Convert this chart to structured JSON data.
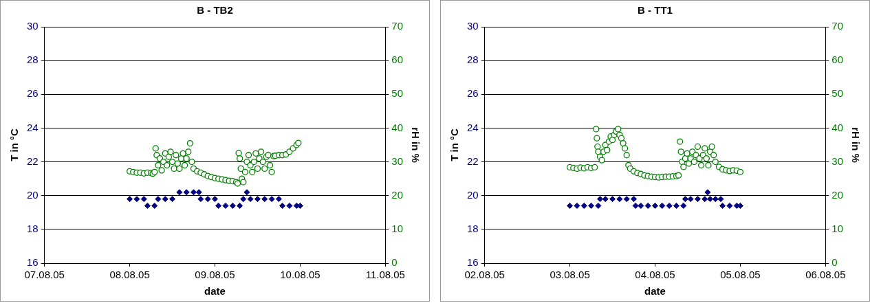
{
  "chart_data": [
    {
      "type": "scatter",
      "title": "B - TB2",
      "xlabel": "date",
      "ylabel": "T in °C",
      "y2label": "rH in %",
      "xlim": [
        "--08-07",
        "--08-11"
      ],
      "xticks": [
        {
          "value": "--08-07",
          "label": "07.08.05"
        },
        {
          "value": "--08-08",
          "label": "08.08.05"
        },
        {
          "value": "--08-09",
          "label": "09.08.05"
        },
        {
          "value": "--08-10",
          "label": "10.08.05"
        },
        {
          "value": "--08-11",
          "label": "11.08.05"
        }
      ],
      "ylim": [
        16,
        30
      ],
      "yticks": [
        16,
        18,
        20,
        22,
        24,
        26,
        28,
        30
      ],
      "y2lim": [
        0,
        70
      ],
      "y2ticks": [
        0,
        10,
        20,
        30,
        40,
        50,
        60,
        70
      ],
      "grid": "y",
      "legend": false,
      "series": [
        {
          "color": "#000080",
          "marker": "diamond",
          "x": [
            "--08-08T00:00",
            "--08-08T02:00",
            "--08-08T04:00",
            "--08-08T05:00",
            "--08-08T07:00",
            "--08-08T08:00",
            "--08-08T10:00",
            "--08-08T12:00",
            "--08-08T14:00",
            "--08-08T16:00",
            "--08-08T18:00",
            "--08-08T19:30",
            "--08-08T20:00",
            "--08-08T22:00",
            "--08-09T00:00",
            "--08-09T01:00",
            "--08-09T03:00",
            "--08-09T05:00",
            "--08-09T07:00",
            "--08-09T08:00",
            "--08-09T09:00",
            "--08-09T10:00",
            "--08-09T12:00",
            "--08-09T14:00",
            "--08-09T16:00",
            "--08-09T18:00",
            "--08-09T19:00",
            "--08-09T21:00",
            "--08-09T23:00",
            "--08-10T00:00"
          ],
          "values": [
            19.8,
            19.8,
            19.8,
            19.4,
            19.4,
            19.8,
            19.8,
            19.8,
            20.2,
            20.2,
            20.2,
            20.2,
            19.8,
            19.8,
            19.8,
            19.4,
            19.4,
            19.4,
            19.4,
            19.8,
            20.2,
            19.8,
            19.8,
            19.8,
            19.8,
            19.8,
            19.4,
            19.4,
            19.4,
            19.4
          ]
        },
        {
          "color": "#008000",
          "marker": "circle",
          "axis": "y2",
          "x": [
            "--08-08T00:00",
            "--08-08T01:00",
            "--08-08T02:00",
            "--08-08T03:00",
            "--08-08T04:00",
            "--08-08T05:00",
            "--08-08T06:00",
            "--08-08T06:30",
            "--08-08T07:00",
            "--08-08T07:18",
            "--08-08T07:36",
            "--08-08T08:00",
            "--08-08T08:30",
            "--08-08T09:00",
            "--08-08T09:30",
            "--08-08T10:00",
            "--08-08T10:30",
            "--08-08T11:00",
            "--08-08T11:30",
            "--08-08T12:00",
            "--08-08T12:30",
            "--08-08T13:00",
            "--08-08T13:30",
            "--08-08T14:00",
            "--08-08T14:30",
            "--08-08T15:00",
            "--08-08T15:30",
            "--08-08T16:00",
            "--08-08T16:30",
            "--08-08T17:00",
            "--08-08T17:30",
            "--08-08T18:00",
            "--08-08T19:00",
            "--08-08T20:00",
            "--08-08T21:00",
            "--08-08T22:00",
            "--08-08T23:00",
            "--08-09T00:00",
            "--08-09T01:00",
            "--08-09T02:00",
            "--08-09T03:00",
            "--08-09T04:00",
            "--08-09T05:00",
            "--08-09T06:00",
            "--08-09T06:24",
            "--08-09T06:42",
            "--08-09T07:00",
            "--08-09T07:18",
            "--08-09T07:36",
            "--08-09T08:00",
            "--08-09T08:30",
            "--08-09T09:00",
            "--08-09T09:30",
            "--08-09T10:00",
            "--08-09T10:30",
            "--08-09T11:00",
            "--08-09T11:30",
            "--08-09T12:00",
            "--08-09T12:30",
            "--08-09T13:00",
            "--08-09T13:30",
            "--08-09T14:00",
            "--08-09T14:30",
            "--08-09T15:00",
            "--08-09T15:30",
            "--08-09T16:00",
            "--08-09T16:30",
            "--08-09T17:00",
            "--08-09T18:00",
            "--08-09T19:00",
            "--08-09T20:00",
            "--08-09T21:00",
            "--08-09T22:00",
            "--08-09T23:00",
            "--08-09T23:30"
          ],
          "values": [
            27.2,
            27,
            26.8,
            26.8,
            26.6,
            26.8,
            26.7,
            26.5,
            27,
            34,
            32,
            29,
            31,
            27.5,
            30,
            32.5,
            29,
            31.5,
            33,
            30,
            28,
            32,
            29.5,
            28,
            31,
            32.5,
            29,
            31,
            33,
            35.5,
            30,
            28,
            27.2,
            26.8,
            26.3,
            25.8,
            25.5,
            25.2,
            25,
            24.8,
            24.6,
            24.4,
            24.3,
            24,
            23.6,
            32.6,
            31,
            28,
            25,
            24,
            27,
            30,
            32,
            29,
            27,
            30,
            32.5,
            28,
            31,
            33,
            30,
            28,
            31.5,
            32,
            29,
            27,
            31.7,
            31.8,
            32,
            32,
            32.2,
            33,
            34,
            35,
            35.6
          ]
        }
      ]
    },
    {
      "type": "scatter",
      "title": "B - TT1",
      "xlabel": "date",
      "ylabel": "T in °C",
      "y2label": "rH in %",
      "xlim": [
        "--08-02",
        "--08-06"
      ],
      "xticks": [
        {
          "value": "--08-02",
          "label": "02.08.05"
        },
        {
          "value": "--08-03",
          "label": "03.08.05"
        },
        {
          "value": "--08-04",
          "label": "04.08.05"
        },
        {
          "value": "--08-05",
          "label": "05.08.05"
        },
        {
          "value": "--08-06",
          "label": "06.08.05"
        }
      ],
      "ylim": [
        16,
        30
      ],
      "yticks": [
        16,
        18,
        20,
        22,
        24,
        26,
        28,
        30
      ],
      "y2lim": [
        0,
        70
      ],
      "y2ticks": [
        0,
        10,
        20,
        30,
        40,
        50,
        60,
        70
      ],
      "grid": "y",
      "legend": false,
      "series": [
        {
          "color": "#000080",
          "marker": "diamond",
          "x": [
            "--08-03T00:00",
            "--08-03T02:00",
            "--08-03T04:00",
            "--08-03T06:00",
            "--08-03T08:00",
            "--08-03T08:30",
            "--08-03T10:00",
            "--08-03T12:00",
            "--08-03T14:00",
            "--08-03T16:00",
            "--08-03T18:00",
            "--08-03T18:30",
            "--08-03T20:00",
            "--08-03T22:00",
            "--08-04T00:00",
            "--08-04T02:00",
            "--08-04T04:00",
            "--08-04T06:00",
            "--08-04T08:00",
            "--08-04T08:30",
            "--08-04T10:00",
            "--08-04T12:00",
            "--08-04T14:00",
            "--08-04T14:48",
            "--08-04T15:30",
            "--08-04T17:00",
            "--08-04T18:30",
            "--08-04T19:00",
            "--08-04T21:00",
            "--08-04T23:00",
            "--08-05T00:00"
          ],
          "values": [
            19.4,
            19.4,
            19.4,
            19.4,
            19.4,
            19.8,
            19.8,
            19.8,
            19.8,
            19.8,
            19.8,
            19.4,
            19.4,
            19.4,
            19.4,
            19.4,
            19.4,
            19.4,
            19.4,
            19.8,
            19.8,
            19.8,
            19.8,
            20.2,
            19.8,
            19.8,
            19.8,
            19.4,
            19.4,
            19.4,
            19.4
          ]
        },
        {
          "color": "#008000",
          "marker": "circle",
          "axis": "y2",
          "x": [
            "--08-03T00:00",
            "--08-03T01:00",
            "--08-03T02:00",
            "--08-03T03:00",
            "--08-03T04:00",
            "--08-03T05:00",
            "--08-03T06:00",
            "--08-03T07:00",
            "--08-03T07:24",
            "--08-03T07:36",
            "--08-03T07:48",
            "--08-03T08:00",
            "--08-03T08:30",
            "--08-03T09:00",
            "--08-03T09:30",
            "--08-03T10:00",
            "--08-03T10:30",
            "--08-03T11:00",
            "--08-03T11:30",
            "--08-03T12:00",
            "--08-03T12:30",
            "--08-03T13:00",
            "--08-03T13:36",
            "--08-03T14:00",
            "--08-03T14:30",
            "--08-03T15:00",
            "--08-03T15:30",
            "--08-03T16:00",
            "--08-03T16:30",
            "--08-03T17:00",
            "--08-03T18:00",
            "--08-03T19:00",
            "--08-03T20:00",
            "--08-03T21:00",
            "--08-03T22:00",
            "--08-03T23:00",
            "--08-04T00:00",
            "--08-04T01:00",
            "--08-04T02:00",
            "--08-04T03:00",
            "--08-04T04:00",
            "--08-04T05:00",
            "--08-04T06:00",
            "--08-04T06:36",
            "--08-04T07:00",
            "--08-04T07:18",
            "--08-04T07:36",
            "--08-04T08:00",
            "--08-04T08:30",
            "--08-04T09:00",
            "--08-04T09:30",
            "--08-04T10:00",
            "--08-04T10:30",
            "--08-04T11:00",
            "--08-04T11:30",
            "--08-04T12:00",
            "--08-04T12:30",
            "--08-04T13:00",
            "--08-04T13:30",
            "--08-04T14:00",
            "--08-04T14:30",
            "--08-04T15:00",
            "--08-04T15:30",
            "--08-04T16:00",
            "--08-04T16:30",
            "--08-04T17:00",
            "--08-04T18:00",
            "--08-04T19:00",
            "--08-04T20:00",
            "--08-04T21:00",
            "--08-04T22:00",
            "--08-04T23:00",
            "--08-05T00:00"
          ],
          "values": [
            28.4,
            28.2,
            28,
            28.3,
            28.1,
            28.4,
            28.2,
            28.4,
            39.7,
            37,
            34.5,
            33,
            31.5,
            30.5,
            33,
            35,
            33.5,
            36,
            37.5,
            36.5,
            38,
            39,
            39.7,
            38,
            37,
            35.5,
            34,
            32,
            29,
            28,
            27.2,
            26.7,
            26.4,
            26,
            25.8,
            25.6,
            25.5,
            25.4,
            25.5,
            25.6,
            25.6,
            25.7,
            25.8,
            26,
            36,
            33,
            30,
            28.5,
            31,
            32.5,
            29.5,
            31,
            33,
            30,
            32,
            34.5,
            31,
            29,
            32,
            34,
            31,
            29,
            33,
            34.5,
            32,
            30,
            28.5,
            27.8,
            27.5,
            27.3,
            27.5,
            27.4,
            27
          ]
        }
      ]
    }
  ]
}
